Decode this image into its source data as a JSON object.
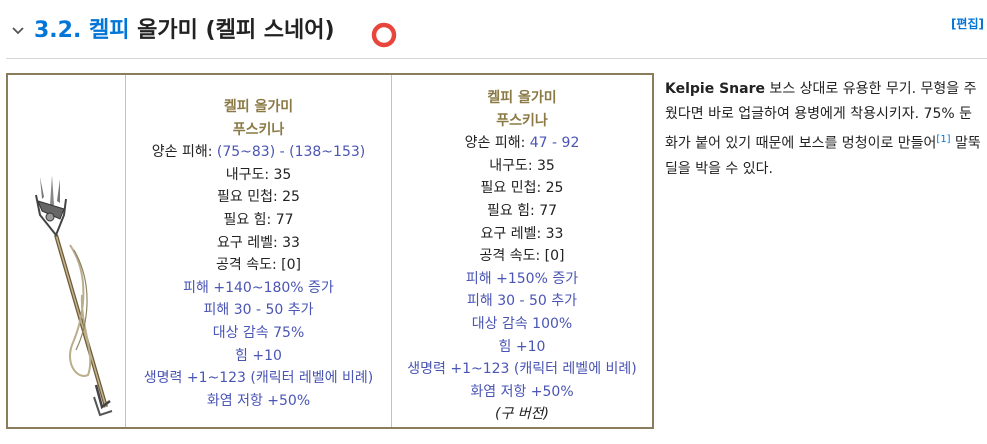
{
  "heading": {
    "number": "3.2.",
    "link": "켈피",
    "rest": "올가미 (켈피 스네어)",
    "edit": "[편집]"
  },
  "item_table": {
    "image_alt": "Kelpie Snare trident",
    "current": {
      "name": "켈피 올가미",
      "base": "푸스키나",
      "lines": [
        {
          "text": "양손 피해: ",
          "value": "(75~83) - (138~153)"
        },
        {
          "text": "내구도: 35"
        },
        {
          "text": "필요 민첩: 25"
        },
        {
          "text": "필요 힘: 77"
        },
        {
          "text": "요구 레벨: 33"
        },
        {
          "text": "공격 속도: [0]"
        }
      ],
      "mods": [
        "피해 +140~180% 증가",
        "피해 30 - 50 추가",
        "대상 감속 75%",
        "힘 +10",
        "생명력 +1~123 (캐릭터 레벨에 비례)",
        "화염 저항 +50%"
      ]
    },
    "old": {
      "name": "켈피 올가미",
      "base": "푸스키나",
      "lines": [
        {
          "text": "양손 피해: ",
          "value": "47 - 92"
        },
        {
          "text": "내구도: 35"
        },
        {
          "text": "필요 민첩: 25"
        },
        {
          "text": "필요 힘: 77"
        },
        {
          "text": "요구 레벨: 33"
        },
        {
          "text": "공격 속도: [0]"
        }
      ],
      "mods": [
        "피해 +150% 증가",
        "피해 30 - 50 추가",
        "대상 감속 100%",
        "힘 +10",
        "생명력 +1~123 (캐릭터 레벨에 비례)",
        "화염 저항 +50%"
      ],
      "version_note": "(구 버전)"
    }
  },
  "description": {
    "bold": "Kelpie Snare",
    "text_1": " 보스 상대로 유용한 무기. 무형을 주웠다면 바로 업글하여 용병에게 착용시키자. 75% 둔화가 붙어 있기 때문에 보스를 멍청이로 만들어",
    "footnote": "[1]",
    "text_2": " 말뚝딜을 박을 수 있다."
  },
  "colors": {
    "link": "#0275d8",
    "item_name": "#8b7a45",
    "mod_blue": "#4a55b4",
    "table_border": "#8b7d5c",
    "circle_red": "#e8463c"
  }
}
